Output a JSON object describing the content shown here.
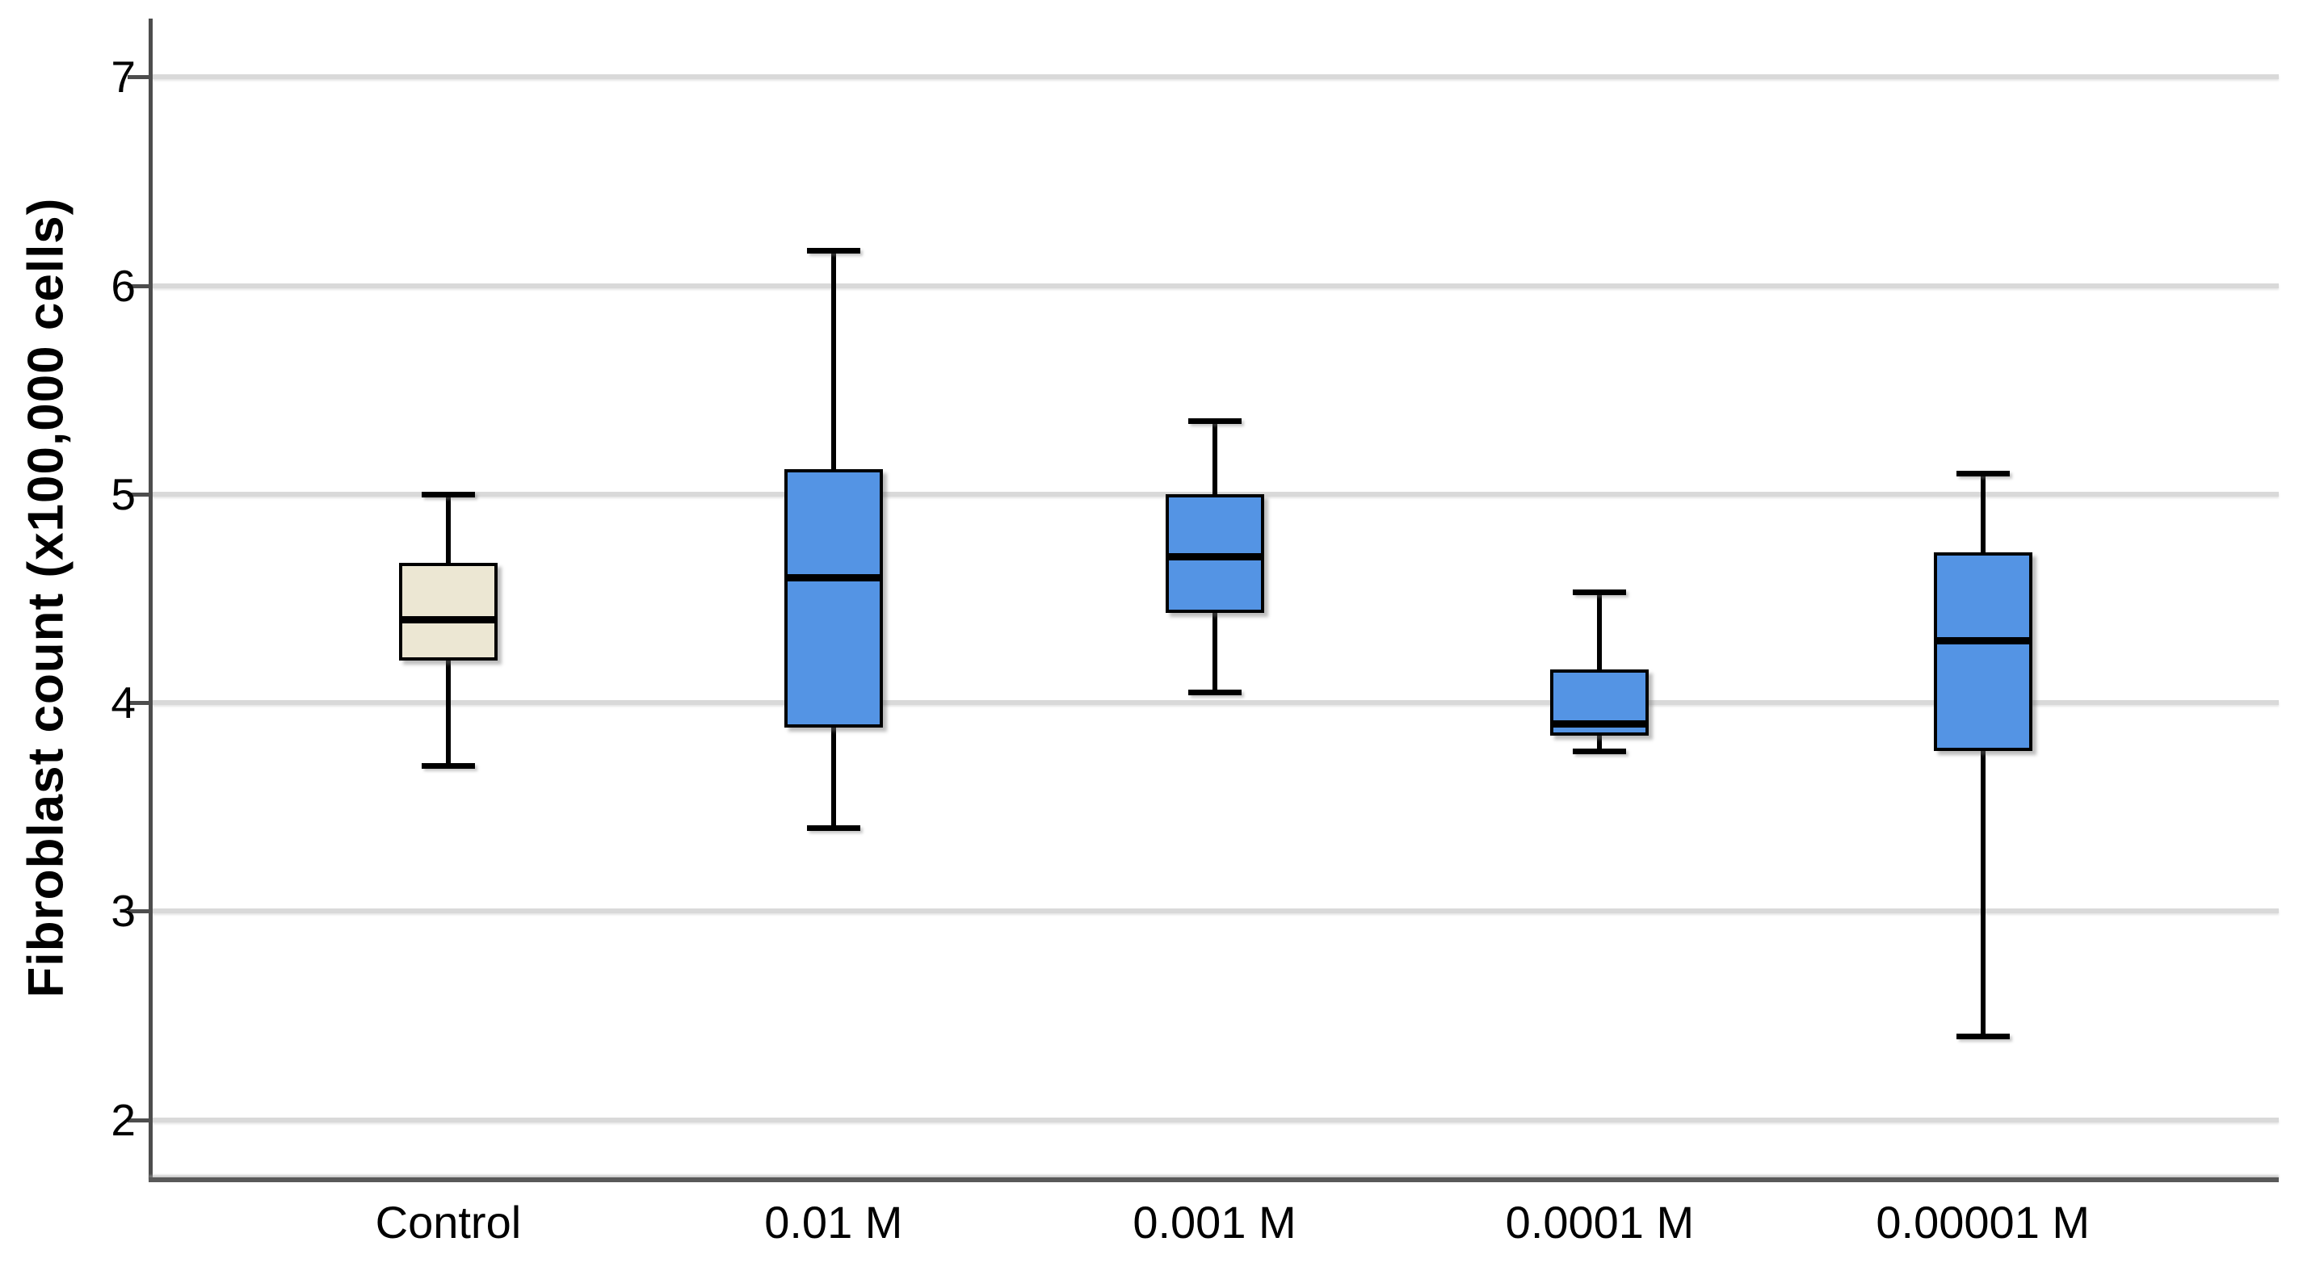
{
  "figure": {
    "background": "#ffffff",
    "text_color": "#000000",
    "axis_color": "#4d4d4d",
    "gridline_color": "#d9d9d9",
    "box_border_color": "#000000",
    "control_fill": "#ece7d3",
    "treatment_fill": "#5494e4"
  },
  "chart_data": {
    "type": "boxplot",
    "title": "",
    "xlabel": "",
    "ylabel": "Fibroblast count (x100,000 cells)",
    "categories": [
      "Control",
      "0.01 M",
      "0.001 M",
      "0.0001 M",
      "0.00001 M"
    ],
    "y_ticks": [
      7,
      6,
      5,
      4,
      3,
      2
    ],
    "ylim": [
      1.72,
      7.28
    ],
    "grid": "horizontal-only",
    "legend": "none",
    "x_center_pct": [
      14.0,
      32.1,
      50.0,
      68.1,
      86.1
    ],
    "series": [
      {
        "category": "Control",
        "min": 3.7,
        "q1": 4.2,
        "median": 4.4,
        "q3": 4.67,
        "max": 5.0,
        "fill": "#ece7d3"
      },
      {
        "category": "0.01 M",
        "min": 3.4,
        "q1": 3.88,
        "median": 4.6,
        "q3": 5.12,
        "max": 6.17,
        "fill": "#5494e4"
      },
      {
        "category": "0.001 M",
        "min": 4.05,
        "q1": 4.43,
        "median": 4.7,
        "q3": 5.0,
        "max": 5.35,
        "fill": "#5494e4"
      },
      {
        "category": "0.0001 M",
        "min": 3.77,
        "q1": 3.84,
        "median": 3.9,
        "q3": 4.16,
        "max": 4.53,
        "fill": "#5494e4"
      },
      {
        "category": "0.00001 M",
        "min": 2.4,
        "q1": 3.77,
        "median": 4.3,
        "q3": 4.72,
        "max": 5.1,
        "fill": "#5494e4"
      }
    ]
  }
}
